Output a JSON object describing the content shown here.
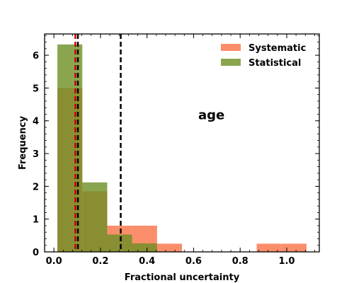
{
  "chart_data": {
    "type": "bar",
    "subtype": "histogram",
    "title": "",
    "xlabel": "Fractional uncertainty",
    "ylabel": "Frequency",
    "xlim": [
      -0.04,
      1.14
    ],
    "ylim": [
      0,
      6.65
    ],
    "x_ticks": [
      0.0,
      0.2,
      0.4,
      0.6,
      0.8,
      1.0
    ],
    "x_tick_labels": [
      "0.0",
      "0.2",
      "0.4",
      "0.6",
      "0.8",
      "1.0"
    ],
    "y_ticks": [
      0,
      1,
      2,
      3,
      4,
      5,
      6
    ],
    "y_tick_labels": [
      "0",
      "1",
      "2",
      "3",
      "4",
      "5",
      "6"
    ],
    "grid": false,
    "legend_position": "top-right",
    "series": [
      {
        "name": "Systematic",
        "color": "#fa7a50",
        "bin_edges": [
          0.015,
          0.122,
          0.229,
          0.336,
          0.443,
          0.55,
          0.657,
          0.764,
          0.871,
          0.978,
          1.085
        ],
        "values": [
          5.0,
          1.85,
          0.8,
          0.8,
          0.25,
          0.0,
          0.0,
          0.0,
          0.25,
          0.25
        ]
      },
      {
        "name": "Statistical",
        "color": "#6b8e23",
        "bin_edges": [
          0.015,
          0.122,
          0.229,
          0.336,
          0.443
        ],
        "values": [
          6.33,
          2.12,
          0.53,
          0.26
        ]
      }
    ],
    "vertical_lines": [
      {
        "x": 0.092,
        "color": "#cc0000",
        "style": "dashed"
      },
      {
        "x": 0.103,
        "color": "#000000",
        "style": "dashed"
      },
      {
        "x": 0.287,
        "color": "#000000",
        "style": "dashed"
      }
    ],
    "annotations": [
      {
        "text": "age",
        "x": 0.62,
        "y": 4.05
      }
    ]
  }
}
